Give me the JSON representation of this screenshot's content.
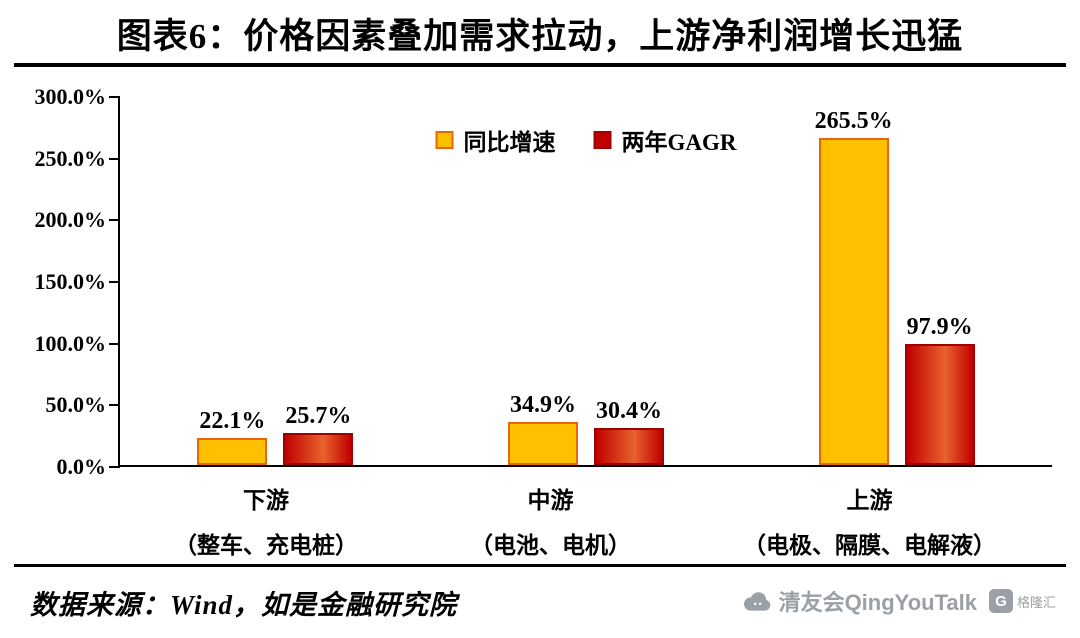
{
  "title": "图表6：价格因素叠加需求拉动，上游净利润增长迅猛",
  "chart_data": {
    "type": "bar",
    "categories": [
      "下游",
      "中游",
      "上游"
    ],
    "category_keys": [
      "downstream",
      "midstream",
      "upstream"
    ],
    "category_subtitles": [
      "（整车、充电桩）",
      "（电池、电机）",
      "（电极、隔膜、电解液）"
    ],
    "series": [
      {
        "name": "同比增速",
        "key": "yoy",
        "values": [
          22.1,
          34.9,
          265.5
        ],
        "color": "#FFC000",
        "border": "#E8650D"
      },
      {
        "name": "两年GAGR",
        "key": "two-year-cagr",
        "values": [
          25.7,
          30.4,
          97.9
        ],
        "color": "#C00000",
        "color2": "#E8622C",
        "border": "#A00000"
      }
    ],
    "value_labels": [
      [
        "22.1%",
        "34.9%",
        "265.5%"
      ],
      [
        "25.7%",
        "30.4%",
        "97.9%"
      ]
    ],
    "xlabel": "",
    "ylabel": "",
    "ylim": [
      0,
      300
    ],
    "ytick_labels": [
      "0.0%",
      "50.0%",
      "100.0%",
      "150.0%",
      "200.0%",
      "250.0%",
      "300.0%"
    ],
    "legend_position": "top-center",
    "grid": false
  },
  "footer": {
    "source": "数据来源：Wind，如是金融研究院"
  },
  "branding": {
    "community": "清友会QingYouTalk",
    "watermark": "格隆汇",
    "watermark_initial": "G"
  },
  "colors": {
    "axis": "#000000",
    "text": "#000000",
    "branding_gray": "#9AA0A6"
  }
}
